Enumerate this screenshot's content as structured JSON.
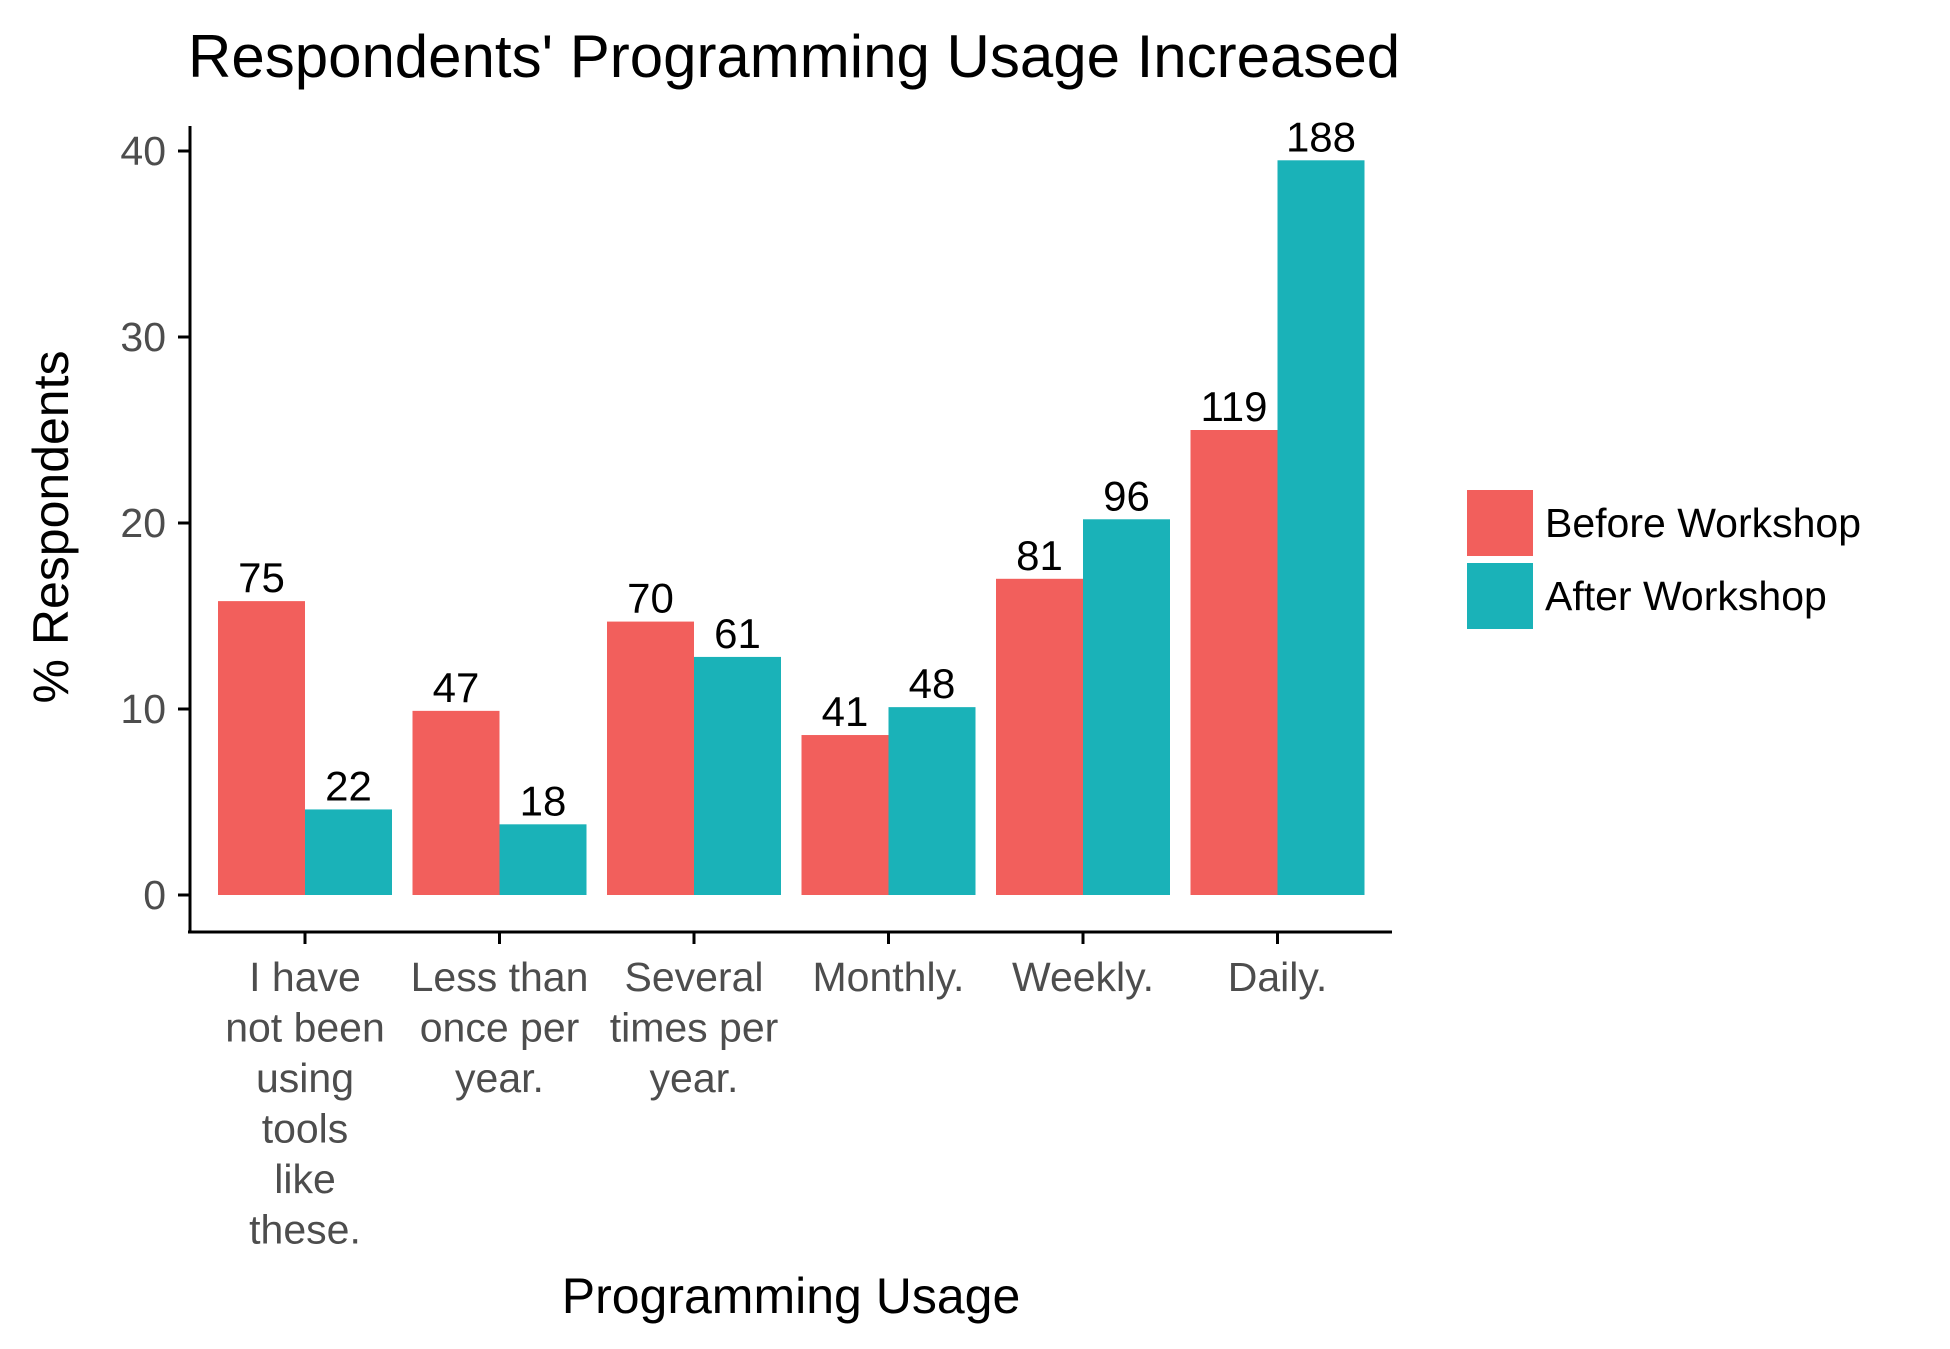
{
  "chart_data": {
    "type": "bar",
    "title": "Respondents' Programming Usage Increased",
    "xlabel": "Programming Usage",
    "ylabel": "% Respondents",
    "ylim": [
      0,
      41.5
    ],
    "yticks": [
      0,
      10,
      20,
      30,
      40
    ],
    "grid": false,
    "legend_position": "right",
    "categories": [
      "I have not been using tools like these.",
      "Less than once per year.",
      "Several times per year.",
      "Monthly.",
      "Weekly.",
      "Daily."
    ],
    "category_lines": [
      [
        "I have",
        "not been",
        "using",
        "tools",
        "like",
        "these."
      ],
      [
        "Less than",
        "once per",
        "year."
      ],
      [
        "Several",
        "times per",
        "year."
      ],
      [
        "Monthly."
      ],
      [
        "Weekly."
      ],
      [
        "Daily."
      ]
    ],
    "series": [
      {
        "name": "Before Workshop",
        "color": "#F25F5C",
        "values": [
          15.8,
          9.9,
          14.7,
          8.6,
          17.0,
          25.0
        ],
        "labels": [
          "75",
          "47",
          "70",
          "41",
          "81",
          "119"
        ]
      },
      {
        "name": "After Workshop",
        "color": "#1AB2B8",
        "values": [
          4.6,
          3.8,
          12.8,
          10.1,
          20.2,
          39.5
        ],
        "labels": [
          "22",
          "18",
          "61",
          "48",
          "96",
          "188"
        ]
      }
    ]
  }
}
